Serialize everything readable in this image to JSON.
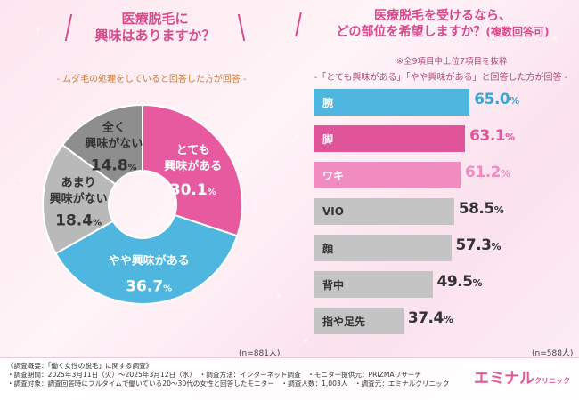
{
  "left": {
    "title_line1": "医療脱毛に",
    "title_line2": "興味はありますか？",
    "subtitle": "- ムダ毛の処理をしていると回答した方が回答 -",
    "n_label": "(n=881人)"
  },
  "right": {
    "title_line1": "医療脱毛を受けるなら、",
    "title_line2": "どの部位を希望しますか？",
    "title_suffix": "(複数回答可)",
    "note": "※全9項目中上位7項目を抜粋",
    "subtitle": "-「とても興味がある」「やや興味がある」と回答した方が回答 -",
    "n_label": "(n=588人)"
  },
  "chart_data": [
    {
      "type": "pie",
      "title": "医療脱毛に興味はありますか？",
      "unit": "%",
      "slices": [
        {
          "label_line1": "とても",
          "label_line2": "興味がある",
          "value": 30.1,
          "color": "#e85aa0",
          "text_color": "#ffffff"
        },
        {
          "label_line1": "やや興味がある",
          "label_line2": "",
          "value": 36.7,
          "color": "#4fb6e0",
          "text_color": "#ffffff"
        },
        {
          "label_line1": "あまり",
          "label_line2": "興味がない",
          "value": 18.4,
          "color": "#b9b9b9",
          "text_color": "#333333"
        },
        {
          "label_line1": "全く",
          "label_line2": "興味がない",
          "value": 14.8,
          "color": "#8e8e8e",
          "text_color": "#333333"
        }
      ]
    },
    {
      "type": "bar",
      "orientation": "horizontal",
      "title": "医療脱毛を受けるなら、どの部位を希望しますか？",
      "unit": "%",
      "xlim": [
        0,
        100
      ],
      "categories": [
        "腕",
        "脚",
        "ワキ",
        "VIO",
        "顔",
        "背中",
        "指や足先"
      ],
      "values": [
        65.0,
        63.1,
        61.2,
        58.5,
        57.3,
        49.5,
        37.4
      ],
      "colors": [
        "#4fb6e0",
        "#e0559a",
        "#f08cc0",
        "#c4c4c4",
        "#c4c4c4",
        "#c4c4c4",
        "#c4c4c4"
      ],
      "label_colors": [
        "#ffffff",
        "#ffffff",
        "#ffffff",
        "#333333",
        "#333333",
        "#333333",
        "#333333"
      ],
      "value_colors": [
        "#3aa6d6",
        "#e0559a",
        "#f08cc0",
        "#333333",
        "#333333",
        "#333333",
        "#333333"
      ]
    }
  ],
  "footer": {
    "line1": "《調査概要：「働く女性の脱毛」に関する調査》",
    "line2": "・調査期間：2025年3月11日（火）～2025年3月12日（水）　・調査方法：インターネット調査　・モニター提供元：PRIZMAリサーチ",
    "line3": "・調査対象：調査回答時にフルタイムで働いている20～30代の女性と回答したモニター　・調査人数：1,003人　・調査元：エミナルクリニック",
    "logo_main": "エミナル",
    "logo_sub": "クリニック"
  }
}
